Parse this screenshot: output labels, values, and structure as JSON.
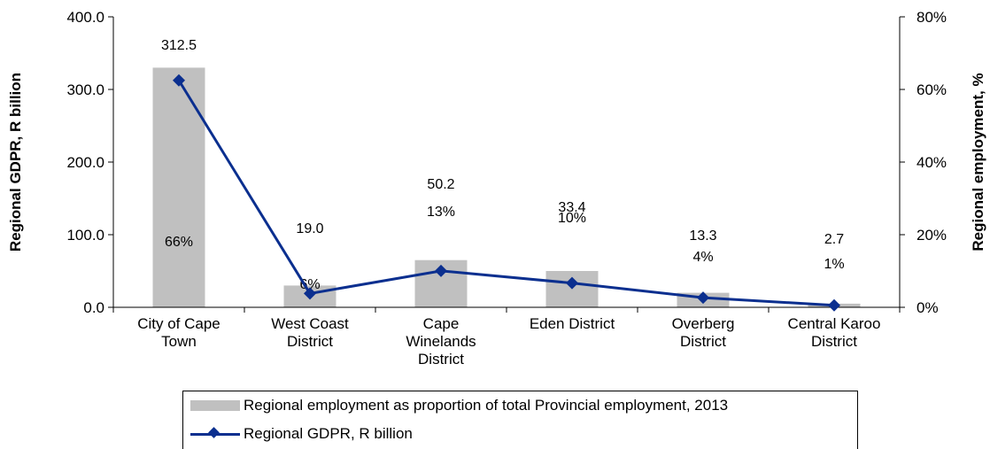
{
  "chart_data": {
    "type": "bar",
    "categories": [
      [
        "City of Cape",
        "Town"
      ],
      [
        "West Coast",
        "District"
      ],
      [
        "Cape",
        "Winelands",
        "District"
      ],
      [
        "Eden District"
      ],
      [
        "Overberg",
        "District"
      ],
      [
        "Central Karoo",
        "District"
      ]
    ],
    "series": [
      {
        "name": "Regional employment as proportion of total Provincial employment, 2013",
        "type": "bar",
        "axis": "right",
        "values": [
          66,
          6,
          13,
          10,
          4,
          1
        ],
        "labels": [
          "66%",
          "6%",
          "13%",
          "10%",
          "4%",
          "1%"
        ],
        "color": "#c0c0c0"
      },
      {
        "name": "Regional GDPR, R billion",
        "type": "line",
        "axis": "left",
        "values": [
          312.5,
          19.0,
          50.2,
          33.4,
          13.3,
          2.7
        ],
        "labels": [
          "312.5",
          "19.0",
          "50.2",
          "33.4",
          "13.3",
          "2.7"
        ],
        "color": "#0b2f8f"
      }
    ],
    "ylabel": "Regional GDPR, R billion",
    "y2label": "Regional employment, %",
    "ylim": [
      0,
      400
    ],
    "y2lim": [
      0,
      80
    ],
    "yticks": [
      "0.0",
      "100.0",
      "200.0",
      "300.0",
      "400.0"
    ],
    "y2ticks": [
      "0%",
      "20%",
      "40%",
      "60%",
      "80%"
    ],
    "legend_placement": "bottom",
    "grid": false
  }
}
